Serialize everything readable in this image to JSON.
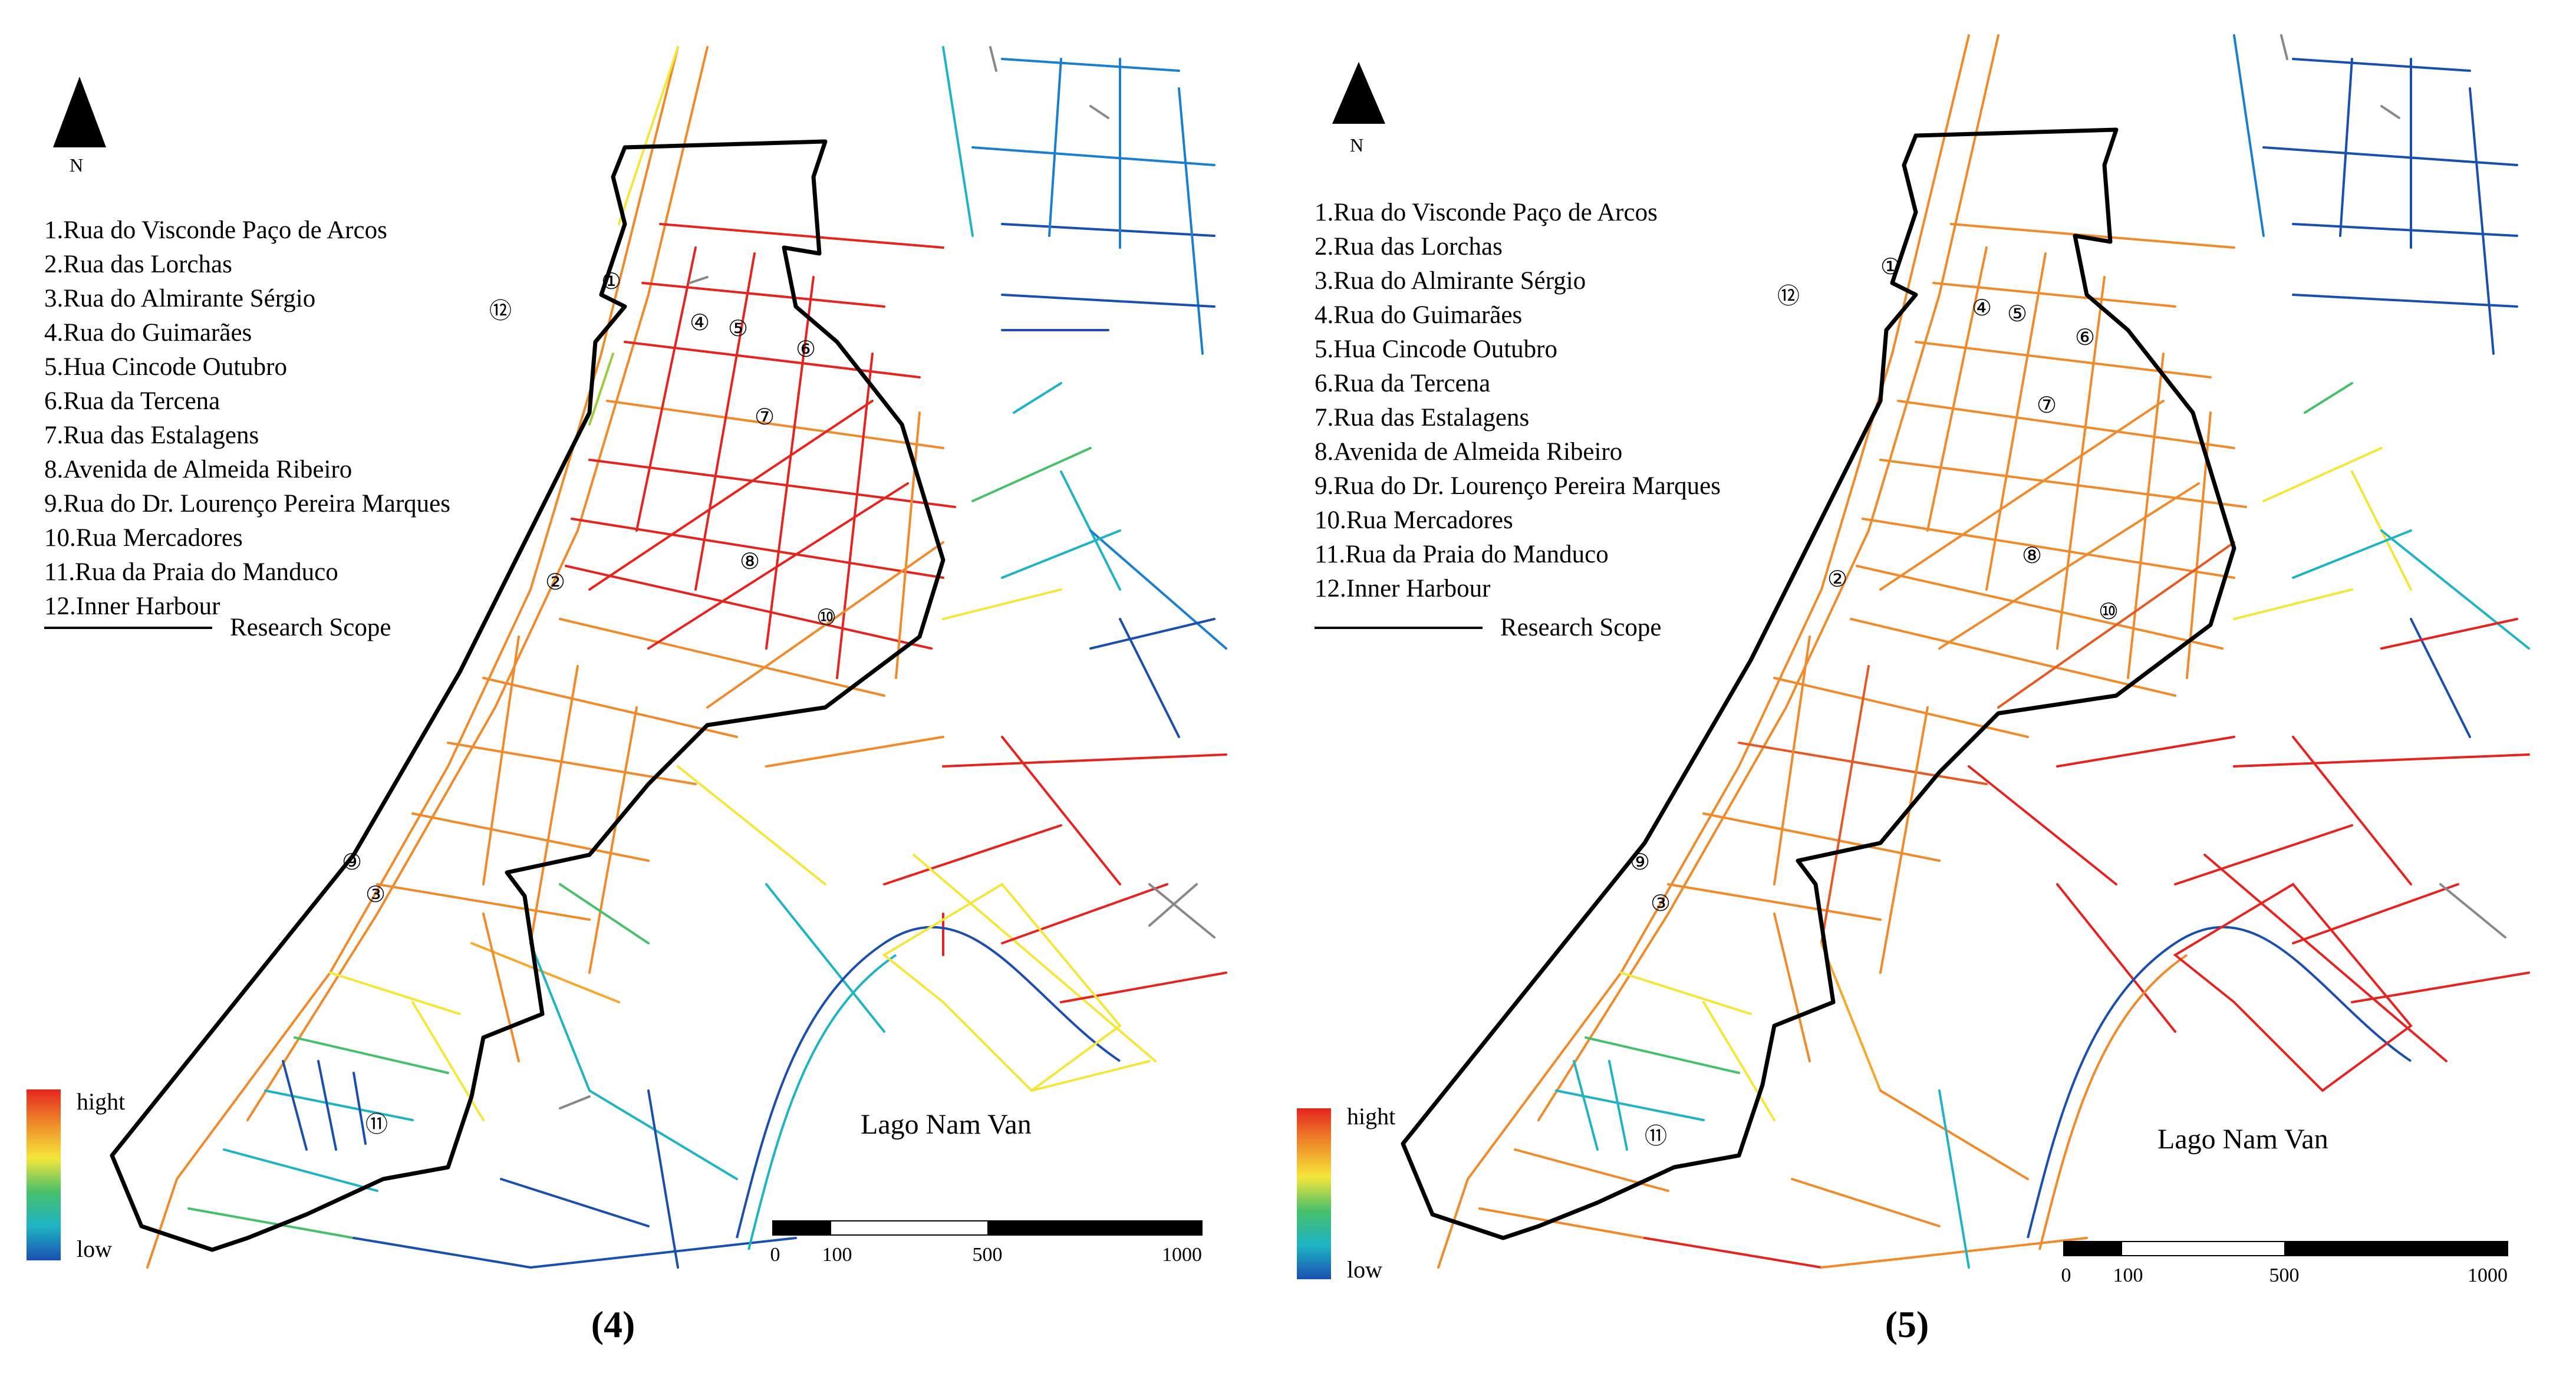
{
  "panels": [
    {
      "label": "(4)",
      "north": "N",
      "legend": [
        "1.Rua do Visconde Paço de Arcos",
        "2.Rua das Lorchas",
        "3.Rua do Almirante Sérgio",
        "4.Rua do Guimarães",
        "5.Hua Cincode Outubro",
        "6.Rua da Tercena",
        "7.Rua das Estalagens",
        "8.Avenida de Almeida Ribeiro",
        "9.Rua do Dr. Lourenço Pereira Marques",
        "10.Rua Mercadores",
        "11.Rua da Praia do Manduco",
        "12.Inner Harbour"
      ],
      "scope_label": "Research Scope",
      "colorbar": {
        "high": "hight",
        "low": "low",
        "colors": [
          "#e52420",
          "#f08a2a",
          "#f5e63a",
          "#48c06a",
          "#1fb4c4",
          "#1a4fb0"
        ]
      },
      "water_label": "Lago Nam Van",
      "scale": {
        "ticks": [
          "0",
          "100",
          "500",
          "1000"
        ],
        "values": [
          0,
          100,
          500,
          1000
        ]
      },
      "markers": [
        "①",
        "②",
        "③",
        "④",
        "⑤",
        "⑥",
        "⑦",
        "⑧",
        "⑨",
        "⑩",
        "⑪",
        "⑫"
      ]
    },
    {
      "label": "(5)",
      "north": "N",
      "legend": [
        "1.Rua do Visconde Paço de Arcos",
        "2.Rua das Lorchas",
        "3.Rua do Almirante Sérgio",
        "4.Rua do Guimarães",
        "5.Hua Cincode Outubro",
        "6.Rua da Tercena",
        "7.Rua das Estalagens",
        "8.Avenida de Almeida Ribeiro",
        "9.Rua do Dr. Lourenço Pereira Marques",
        "10.Rua Mercadores",
        "11.Rua da Praia do Manduco",
        "12.Inner Harbour"
      ],
      "scope_label": "Research Scope",
      "colorbar": {
        "high": "hight",
        "low": "low",
        "colors": [
          "#e52420",
          "#f08a2a",
          "#f5e63a",
          "#48c06a",
          "#1fb4c4",
          "#1a4fb0"
        ]
      },
      "water_label": "Lago Nam Van",
      "scale": {
        "ticks": [
          "0",
          "100",
          "500",
          "1000"
        ],
        "values": [
          0,
          100,
          500,
          1000
        ]
      },
      "markers": [
        "①",
        "②",
        "③",
        "④",
        "⑤",
        "⑥",
        "⑦",
        "⑧",
        "⑨",
        "⑩",
        "⑪",
        "⑫"
      ]
    }
  ]
}
